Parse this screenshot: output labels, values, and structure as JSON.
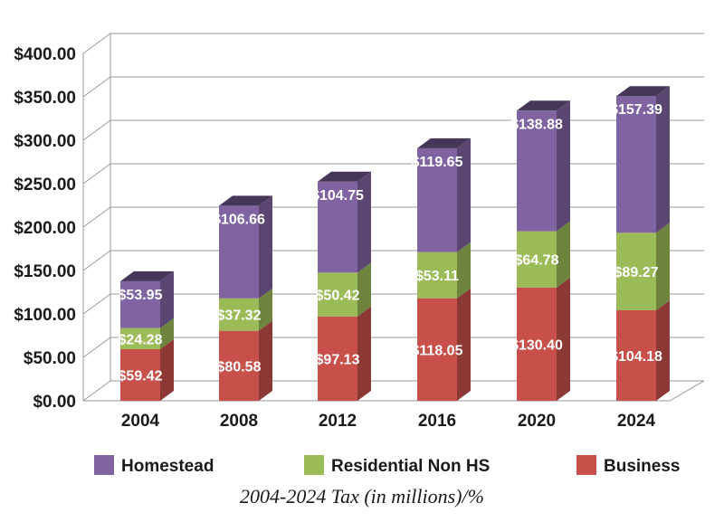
{
  "chart_data": {
    "type": "bar",
    "stacked": true,
    "categories": [
      "2004",
      "2008",
      "2012",
      "2016",
      "2020",
      "2024"
    ],
    "series": [
      {
        "name": "Business",
        "color": "#c8504a",
        "values": [
          59.42,
          80.58,
          97.13,
          118.05,
          130.4,
          104.18
        ],
        "labels": [
          "$59.42",
          "$80.58",
          "$97.13",
          "$118.05",
          "$130.40",
          "$104.18"
        ]
      },
      {
        "name": "Residential Non HS",
        "color": "#9bbb59",
        "values": [
          24.28,
          37.32,
          50.42,
          53.11,
          64.78,
          89.27
        ],
        "labels": [
          "$24.28",
          "$37.32",
          "$50.42",
          "$53.11",
          "$64.78",
          "$89.27"
        ]
      },
      {
        "name": "Homestead",
        "color": "#8064a2",
        "values": [
          53.95,
          106.66,
          104.75,
          119.65,
          138.88,
          157.39
        ],
        "labels": [
          "$53.95",
          "$106.66",
          "$104.75",
          "$119.65",
          "$138.88",
          "$157.39"
        ]
      }
    ],
    "y_ticks": [
      {
        "value": 0,
        "label": "$0.00"
      },
      {
        "value": 50,
        "label": "$50.00"
      },
      {
        "value": 100,
        "label": "$100.00"
      },
      {
        "value": 150,
        "label": "$150.00"
      },
      {
        "value": 200,
        "label": "$200.00"
      },
      {
        "value": 250,
        "label": "$250.00"
      },
      {
        "value": 300,
        "label": "$300.00"
      },
      {
        "value": 350,
        "label": "$350.00"
      },
      {
        "value": 400,
        "label": "$400.00"
      }
    ],
    "ylim": [
      0,
      400
    ],
    "legend": [
      "Homestead",
      "Residential Non HS",
      "Business"
    ],
    "legend_position": "bottom",
    "grid": true,
    "title": "2004-2024 Tax (in millions)/%"
  }
}
